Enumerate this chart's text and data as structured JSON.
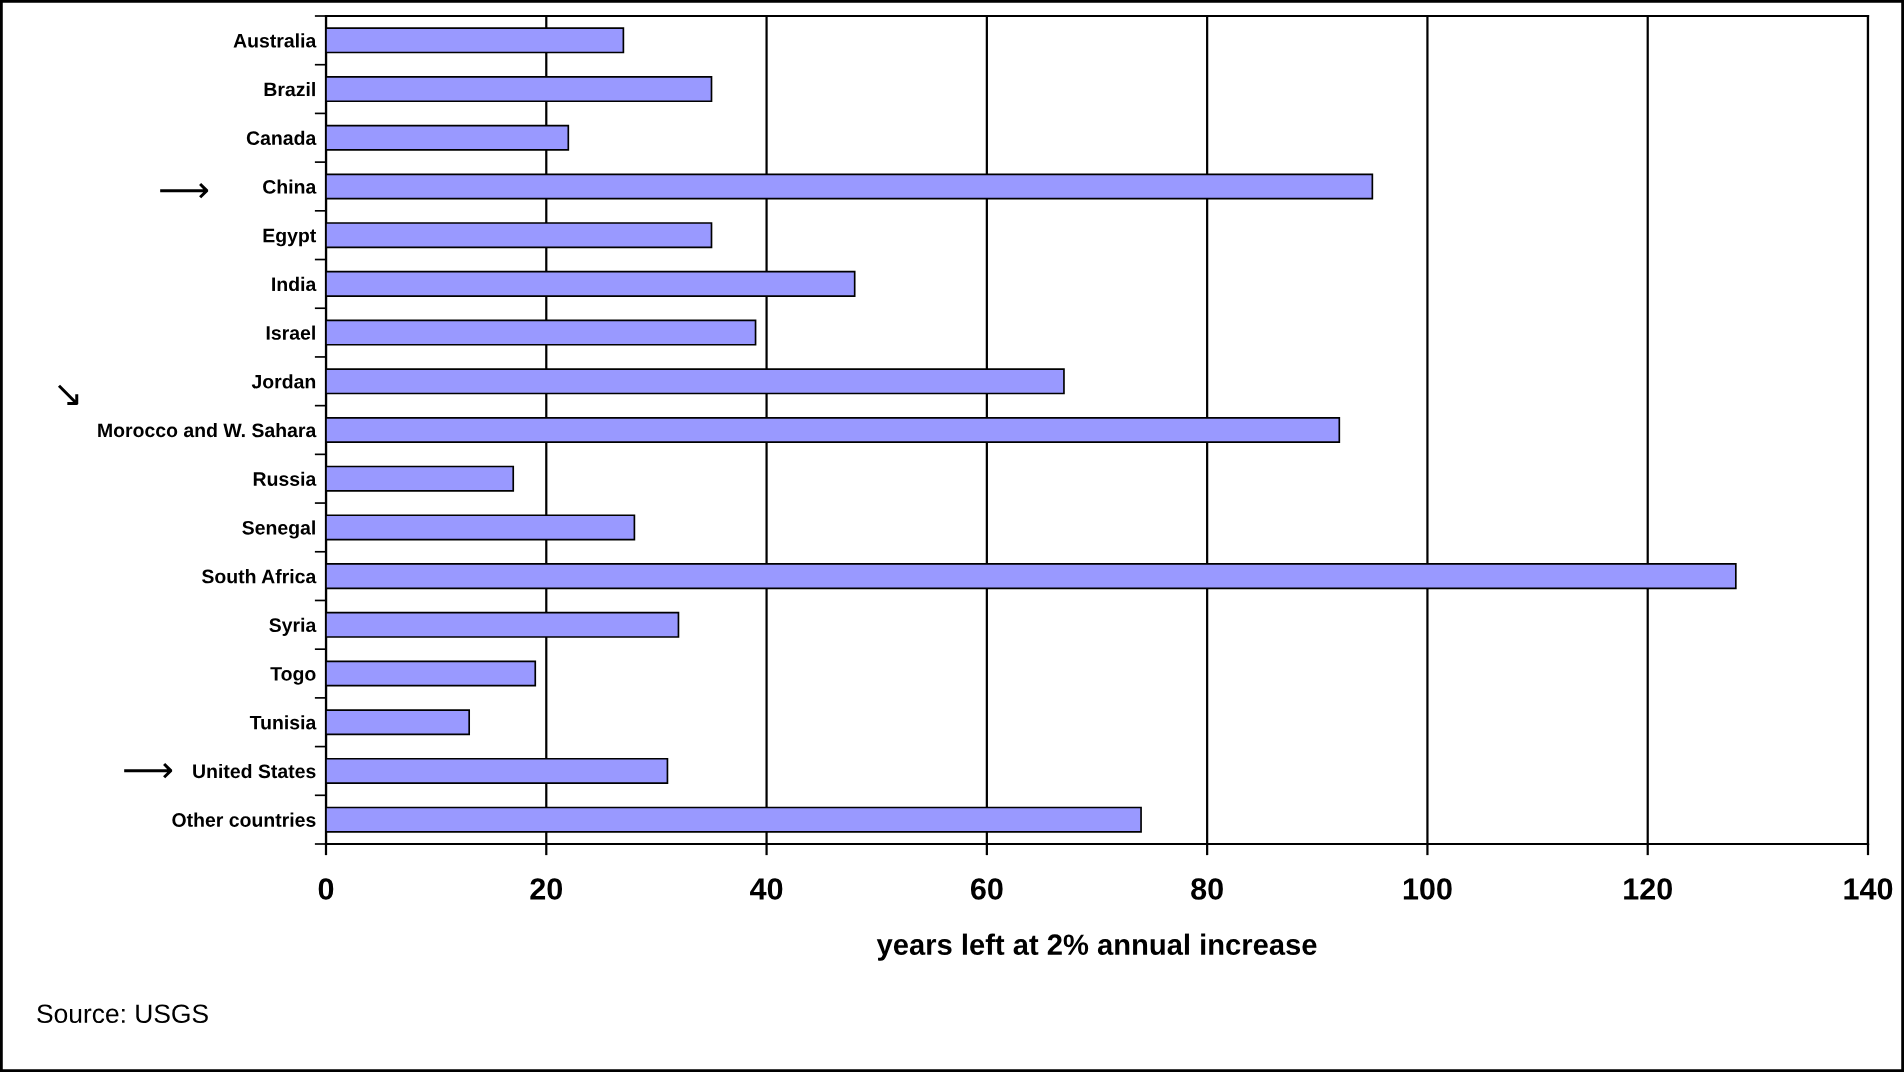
{
  "chart_data": {
    "type": "bar",
    "orientation": "horizontal",
    "categories": [
      "Australia",
      "Brazil",
      "Canada",
      "China",
      "Egypt",
      "India",
      "Israel",
      "Jordan",
      "Morocco and W. Sahara",
      "Russia",
      "Senegal",
      "South Africa",
      "Syria",
      "Togo",
      "Tunisia",
      "United States",
      "Other countries"
    ],
    "values": [
      27,
      35,
      22,
      95,
      35,
      48,
      39,
      67,
      92,
      17,
      28,
      128,
      32,
      19,
      13,
      31,
      74
    ],
    "color": "#9999ff",
    "xlim": [
      0,
      140
    ],
    "xticks": [
      0,
      20,
      40,
      60,
      80,
      100,
      120,
      140
    ],
    "xlabel": "years left at 2% annual increase",
    "grid": "x",
    "legend": false,
    "annotations": [
      "⟶",
      "↘",
      "⟶",
      "Source: USGS"
    ]
  }
}
